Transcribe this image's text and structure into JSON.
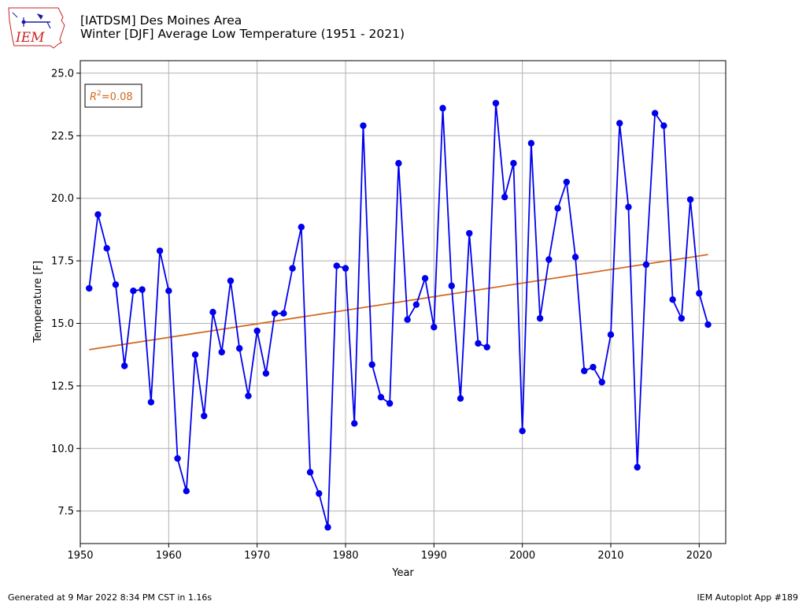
{
  "header": {
    "title_line1": "[IATDSM] Des Moines Area",
    "title_line2": "Winter [DJF] Average Low Temperature (1951 - 2021)",
    "logo_text": "IEM"
  },
  "footer": {
    "generated": "Generated at 9 Mar 2022 8:34 PM CST in 1.16s",
    "app": "IEM Autoplot App #189"
  },
  "colors": {
    "series": "#0000ee",
    "trend": "#d2691e",
    "grid": "#b0b0b0",
    "logo_red": "#cc2222"
  },
  "chart_data": {
    "type": "line",
    "title": "Winter [DJF] Average Low Temperature (1951 - 2021)",
    "xlabel": "Year",
    "ylabel": "Temperature [F]",
    "xlim": [
      1950,
      2023
    ],
    "ylim": [
      6.2,
      25.5
    ],
    "xticks": [
      1950,
      1960,
      1970,
      1980,
      1990,
      2000,
      2010,
      2020
    ],
    "yticks": [
      7.5,
      10.0,
      12.5,
      15.0,
      17.5,
      20.0,
      22.5,
      25.0
    ],
    "grid": true,
    "annotation": {
      "label": "R",
      "superscript": "2",
      "value_text": "=0.08"
    },
    "x": [
      1951,
      1952,
      1953,
      1954,
      1955,
      1956,
      1957,
      1958,
      1959,
      1960,
      1961,
      1962,
      1963,
      1964,
      1965,
      1966,
      1967,
      1968,
      1969,
      1970,
      1971,
      1972,
      1973,
      1974,
      1975,
      1976,
      1977,
      1978,
      1979,
      1980,
      1981,
      1982,
      1983,
      1984,
      1985,
      1986,
      1987,
      1988,
      1989,
      1990,
      1991,
      1992,
      1993,
      1994,
      1995,
      1996,
      1997,
      1998,
      1999,
      2000,
      2001,
      2002,
      2003,
      2004,
      2005,
      2006,
      2007,
      2008,
      2009,
      2010,
      2011,
      2012,
      2013,
      2014,
      2015,
      2016,
      2017,
      2018,
      2019,
      2020,
      2021
    ],
    "series": [
      {
        "values": [
          16.4,
          19.35,
          18.0,
          16.55,
          13.3,
          16.3,
          16.35,
          11.85,
          17.9,
          16.3,
          9.6,
          8.3,
          13.75,
          11.3,
          15.45,
          13.85,
          16.7,
          14.0,
          12.1,
          14.7,
          13.0,
          15.4,
          15.4,
          17.2,
          18.85,
          9.05,
          8.2,
          6.85,
          17.3,
          17.2,
          11.0,
          22.9,
          13.35,
          12.05,
          11.8,
          21.4,
          15.15,
          15.75,
          16.8,
          14.85,
          23.6,
          16.5,
          12.0,
          18.6,
          14.2,
          14.05,
          23.8,
          20.05,
          21.4,
          10.7,
          22.2,
          15.2,
          17.55,
          19.6,
          20.65,
          17.65,
          13.1,
          13.25,
          12.65,
          14.55,
          23.0,
          19.65,
          9.25,
          17.35,
          23.4,
          22.9,
          15.95,
          15.2,
          19.95,
          16.2,
          14.95
        ]
      }
    ],
    "trend": {
      "x": [
        1951,
        2021
      ],
      "y": [
        13.95,
        17.75
      ]
    }
  }
}
